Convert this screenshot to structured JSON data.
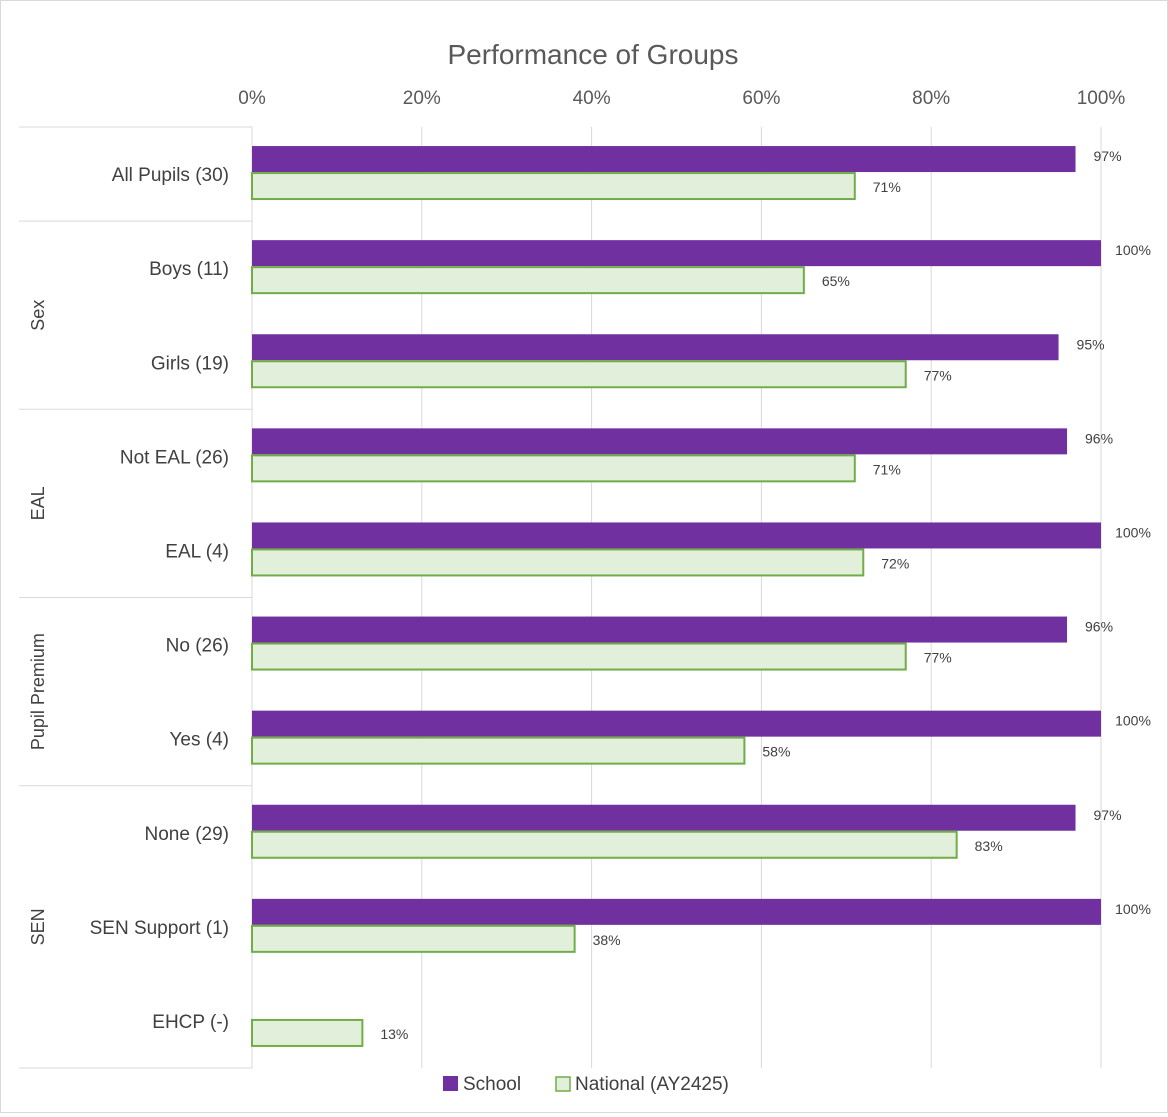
{
  "chart_data": {
    "type": "bar",
    "orientation": "horizontal",
    "title": "Performance of Groups",
    "x_ticks": [
      "0%",
      "20%",
      "40%",
      "60%",
      "80%",
      "100%"
    ],
    "xlim": [
      0,
      100
    ],
    "grid": true,
    "legend_position": "bottom",
    "groups": [
      {
        "label": "",
        "categories": [
          "All Pupils (30)"
        ]
      },
      {
        "label": "Sex",
        "categories": [
          "Boys (11)",
          "Girls (19)"
        ]
      },
      {
        "label": "EAL",
        "categories": [
          "Not EAL (26)",
          "EAL (4)"
        ]
      },
      {
        "label": "Pupil Premium",
        "categories": [
          "No (26)",
          "Yes (4)"
        ]
      },
      {
        "label": "SEN",
        "categories": [
          "None (29)",
          "SEN Support (1)",
          "EHCP (-)"
        ]
      }
    ],
    "categories": [
      "All Pupils (30)",
      "Boys (11)",
      "Girls (19)",
      "Not EAL (26)",
      "EAL (4)",
      "No (26)",
      "Yes (4)",
      "None (29)",
      "SEN Support (1)",
      "EHCP (-)"
    ],
    "series": [
      {
        "name": "School",
        "color": "#7030a0",
        "values": [
          97,
          100,
          95,
          96,
          100,
          96,
          100,
          97,
          100,
          null
        ],
        "labels": [
          "97%",
          "100%",
          "95%",
          "96%",
          "100%",
          "96%",
          "100%",
          "97%",
          "100%",
          ""
        ]
      },
      {
        "name": "National (AY2425)",
        "color": "#e2efda",
        "border_color": "#70ad47",
        "values": [
          71,
          65,
          77,
          71,
          72,
          77,
          58,
          83,
          38,
          13
        ],
        "labels": [
          "71%",
          "65%",
          "77%",
          "71%",
          "72%",
          "77%",
          "58%",
          "83%",
          "38%",
          "13%"
        ]
      }
    ]
  }
}
